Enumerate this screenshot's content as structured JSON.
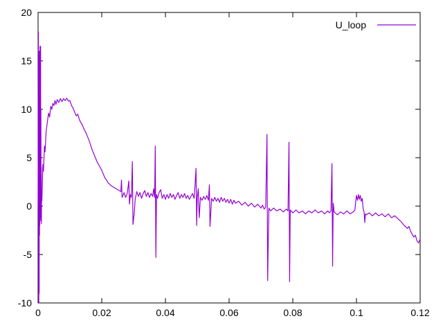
{
  "chart_data": {
    "type": "line",
    "title": "",
    "xlabel": "",
    "ylabel": "",
    "xlim": [
      0,
      0.12
    ],
    "ylim": [
      -10,
      20
    ],
    "xticks": [
      0,
      0.02,
      0.04,
      0.06,
      0.08,
      0.1,
      0.12
    ],
    "xtick_labels": [
      "0",
      "0.02",
      "0.04",
      "0.06",
      "0.08",
      "0.1",
      "0.12"
    ],
    "yticks": [
      -10,
      -5,
      0,
      5,
      10,
      15,
      20
    ],
    "ytick_labels": [
      "-10",
      "-5",
      "0",
      "5",
      "10",
      "15",
      "20"
    ],
    "grid": false,
    "legend_position": "top-right",
    "background_color": "#ffffff",
    "axis_color": "#000000",
    "series": [
      {
        "name": "U_loop",
        "color": "#9400d3",
        "points": [
          [
            0,
            0
          ],
          [
            0.0001,
            18
          ],
          [
            0.00015,
            -9.8
          ],
          [
            0.0002,
            14.5
          ],
          [
            0.00025,
            -10
          ],
          [
            0.0003,
            15.5
          ],
          [
            0.00035,
            -9
          ],
          [
            0.0004,
            16
          ],
          [
            0.00045,
            -3
          ],
          [
            0.0005,
            14
          ],
          [
            0.00055,
            -2
          ],
          [
            0.0006,
            16.5
          ],
          [
            0.00065,
            -1.5
          ],
          [
            0.0007,
            15
          ],
          [
            0.00075,
            -1
          ],
          [
            0.0008,
            16.5
          ],
          [
            0.00085,
            -1.2
          ],
          [
            0.0009,
            10
          ],
          [
            0.00095,
            -1.5
          ],
          [
            0.001,
            4
          ],
          [
            0.00105,
            -1.8
          ],
          [
            0.0011,
            1.5
          ],
          [
            0.0012,
            0.5
          ],
          [
            0.0013,
            1.8
          ],
          [
            0.0015,
            4.3
          ],
          [
            0.0017,
            3.6
          ],
          [
            0.002,
            6.2
          ],
          [
            0.0022,
            5.6
          ],
          [
            0.0025,
            7.6
          ],
          [
            0.0028,
            8.4
          ],
          [
            0.003,
            8.9
          ],
          [
            0.0033,
            9.6
          ],
          [
            0.0036,
            9.2
          ],
          [
            0.004,
            10.3
          ],
          [
            0.0043,
            10
          ],
          [
            0.0046,
            10.6
          ],
          [
            0.005,
            10.4
          ],
          [
            0.0053,
            10.9
          ],
          [
            0.0056,
            10.5
          ],
          [
            0.006,
            11
          ],
          [
            0.0065,
            10.7
          ],
          [
            0.007,
            11.1
          ],
          [
            0.0075,
            10.8
          ],
          [
            0.008,
            11.1
          ],
          [
            0.0085,
            10.9
          ],
          [
            0.009,
            11.15
          ],
          [
            0.0095,
            10.85
          ],
          [
            0.01,
            10.9
          ],
          [
            0.0105,
            10.4
          ],
          [
            0.011,
            10.1
          ],
          [
            0.0115,
            9.7
          ],
          [
            0.012,
            9.3
          ],
          [
            0.0125,
            9.5
          ],
          [
            0.013,
            8.9
          ],
          [
            0.0135,
            8.6
          ],
          [
            0.014,
            8.3
          ],
          [
            0.0145,
            7.9
          ],
          [
            0.015,
            7.6
          ],
          [
            0.0155,
            7.2
          ],
          [
            0.016,
            6.8
          ],
          [
            0.0165,
            6.3
          ],
          [
            0.017,
            5.8
          ],
          [
            0.0175,
            5.4
          ],
          [
            0.018,
            5
          ],
          [
            0.0185,
            4.6
          ],
          [
            0.019,
            4.3
          ],
          [
            0.0195,
            4
          ],
          [
            0.02,
            3.7
          ],
          [
            0.0205,
            3.3
          ],
          [
            0.021,
            2.9
          ],
          [
            0.0215,
            2.7
          ],
          [
            0.022,
            2.4
          ],
          [
            0.023,
            2.1
          ],
          [
            0.024,
            1.9
          ],
          [
            0.025,
            1.7
          ],
          [
            0.026,
            1.5
          ],
          [
            0.0262,
            2.7
          ],
          [
            0.0264,
            0.9
          ],
          [
            0.0268,
            1.2
          ],
          [
            0.027,
            1.4
          ],
          [
            0.0275,
            0.9
          ],
          [
            0.028,
            1.3
          ],
          [
            0.0285,
            2.6
          ],
          [
            0.0287,
            0.2
          ],
          [
            0.029,
            1.2
          ],
          [
            0.0293,
            0.9
          ],
          [
            0.0296,
            4.6
          ],
          [
            0.0298,
            -1.9
          ],
          [
            0.0302,
            -0.8
          ],
          [
            0.0305,
            0.7
          ],
          [
            0.031,
            1.5
          ],
          [
            0.0315,
            1
          ],
          [
            0.032,
            1.4
          ],
          [
            0.0325,
            0.8
          ],
          [
            0.033,
            1.3
          ],
          [
            0.0335,
            1.6
          ],
          [
            0.034,
            1
          ],
          [
            0.0345,
            1.4
          ],
          [
            0.035,
            0.9
          ],
          [
            0.0355,
            1.3
          ],
          [
            0.036,
            1
          ],
          [
            0.0363,
            1.8
          ],
          [
            0.0366,
            0.9
          ],
          [
            0.0368,
            6.2
          ],
          [
            0.037,
            -5.3
          ],
          [
            0.0372,
            1.2
          ],
          [
            0.0375,
            0.8
          ],
          [
            0.038,
            1.4
          ],
          [
            0.0385,
            1.7
          ],
          [
            0.039,
            0.8
          ],
          [
            0.0395,
            1.2
          ],
          [
            0.04,
            0.7
          ],
          [
            0.0405,
            1.2
          ],
          [
            0.041,
            0.8
          ],
          [
            0.0415,
            1.3
          ],
          [
            0.042,
            0.9
          ],
          [
            0.0425,
            1.2
          ],
          [
            0.043,
            0.7
          ],
          [
            0.0435,
            1.1
          ],
          [
            0.044,
            1.4
          ],
          [
            0.0445,
            0.8
          ],
          [
            0.045,
            1.2
          ],
          [
            0.0455,
            0.9
          ],
          [
            0.046,
            1.3
          ],
          [
            0.0465,
            0.8
          ],
          [
            0.047,
            1.1
          ],
          [
            0.0475,
            0.7
          ],
          [
            0.048,
            1
          ],
          [
            0.0485,
            1.3
          ],
          [
            0.049,
            0.8
          ],
          [
            0.0493,
            2.2
          ],
          [
            0.0496,
            3.9
          ],
          [
            0.0498,
            -2
          ],
          [
            0.05,
            0.9
          ],
          [
            0.0503,
            1.8
          ],
          [
            0.0506,
            -1.2
          ],
          [
            0.051,
            0.9
          ],
          [
            0.0515,
            0.6
          ],
          [
            0.052,
            1
          ],
          [
            0.0525,
            0.7
          ],
          [
            0.053,
            1.1
          ],
          [
            0.0535,
            0.6
          ],
          [
            0.0538,
            2.2
          ],
          [
            0.054,
            -2.1
          ],
          [
            0.0545,
            0.8
          ],
          [
            0.055,
            0.5
          ],
          [
            0.0555,
            0.9
          ],
          [
            0.056,
            0.5
          ],
          [
            0.0565,
            0.8
          ],
          [
            0.057,
            0.4
          ],
          [
            0.0575,
            0.9
          ],
          [
            0.058,
            0.5
          ],
          [
            0.0585,
            0.8
          ],
          [
            0.059,
            0.4
          ],
          [
            0.0595,
            0.7
          ],
          [
            0.06,
            0.3
          ],
          [
            0.0605,
            0.7
          ],
          [
            0.061,
            0.2
          ],
          [
            0.0615,
            0.6
          ],
          [
            0.062,
            0.3
          ],
          [
            0.063,
            0.5
          ],
          [
            0.064,
            0.1
          ],
          [
            0.065,
            0.4
          ],
          [
            0.066,
            0
          ],
          [
            0.067,
            0.3
          ],
          [
            0.068,
            -0.1
          ],
          [
            0.069,
            0.2
          ],
          [
            0.07,
            -0.2
          ],
          [
            0.0705,
            0.1
          ],
          [
            0.071,
            -0.3
          ],
          [
            0.0715,
            -0.1
          ],
          [
            0.0719,
            7.4
          ],
          [
            0.0721,
            -7.7
          ],
          [
            0.0723,
            -3.4
          ],
          [
            0.0725,
            -0.2
          ],
          [
            0.073,
            -0.5
          ],
          [
            0.074,
            -0.2
          ],
          [
            0.075,
            -0.5
          ],
          [
            0.076,
            -0.3
          ],
          [
            0.077,
            -0.6
          ],
          [
            0.078,
            -0.3
          ],
          [
            0.0785,
            -0.5
          ],
          [
            0.0788,
            6.6
          ],
          [
            0.079,
            -7.8
          ],
          [
            0.0792,
            -0.4
          ],
          [
            0.08,
            -0.7
          ],
          [
            0.081,
            -0.4
          ],
          [
            0.082,
            -0.7
          ],
          [
            0.083,
            -0.5
          ],
          [
            0.084,
            -0.8
          ],
          [
            0.085,
            -0.5
          ],
          [
            0.086,
            -0.7
          ],
          [
            0.087,
            -0.4
          ],
          [
            0.088,
            -0.7
          ],
          [
            0.089,
            -0.5
          ],
          [
            0.09,
            -0.8
          ],
          [
            0.091,
            -0.5
          ],
          [
            0.0915,
            -0.7
          ],
          [
            0.092,
            -0.5
          ],
          [
            0.0923,
            4.4
          ],
          [
            0.0925,
            -6.2
          ],
          [
            0.0927,
            0.3
          ],
          [
            0.093,
            -0.6
          ],
          [
            0.094,
            -0.9
          ],
          [
            0.095,
            -0.6
          ],
          [
            0.096,
            -0.8
          ],
          [
            0.097,
            -0.5
          ],
          [
            0.098,
            -0.8
          ],
          [
            0.099,
            -0.6
          ],
          [
            0.0995,
            -0.4
          ],
          [
            0.0998,
            0.6
          ],
          [
            0.1,
            1.1
          ],
          [
            0.1003,
            0.6
          ],
          [
            0.1006,
            1.2
          ],
          [
            0.1009,
            0.7
          ],
          [
            0.1012,
            1.1
          ],
          [
            0.1015,
            0.5
          ],
          [
            0.1018,
            0.8
          ],
          [
            0.1021,
            -0.3
          ],
          [
            0.1024,
            -0.6
          ],
          [
            0.1026,
            -1.7
          ],
          [
            0.1028,
            -0.8
          ],
          [
            0.103,
            -0.9
          ],
          [
            0.104,
            -0.7
          ],
          [
            0.105,
            -1
          ],
          [
            0.106,
            -0.7
          ],
          [
            0.107,
            -1
          ],
          [
            0.108,
            -0.8
          ],
          [
            0.109,
            -1.1
          ],
          [
            0.11,
            -0.8
          ],
          [
            0.111,
            -1.2
          ],
          [
            0.112,
            -1
          ],
          [
            0.113,
            -1.3
          ],
          [
            0.114,
            -1.6
          ],
          [
            0.115,
            -2
          ],
          [
            0.116,
            -2.3
          ],
          [
            0.1165,
            -2.1
          ],
          [
            0.117,
            -2.6
          ],
          [
            0.1175,
            -2.9
          ],
          [
            0.118,
            -3.2
          ],
          [
            0.1185,
            -3
          ],
          [
            0.119,
            -3.6
          ],
          [
            0.1195,
            -3.8
          ],
          [
            0.12,
            -3.4
          ]
        ]
      }
    ]
  }
}
